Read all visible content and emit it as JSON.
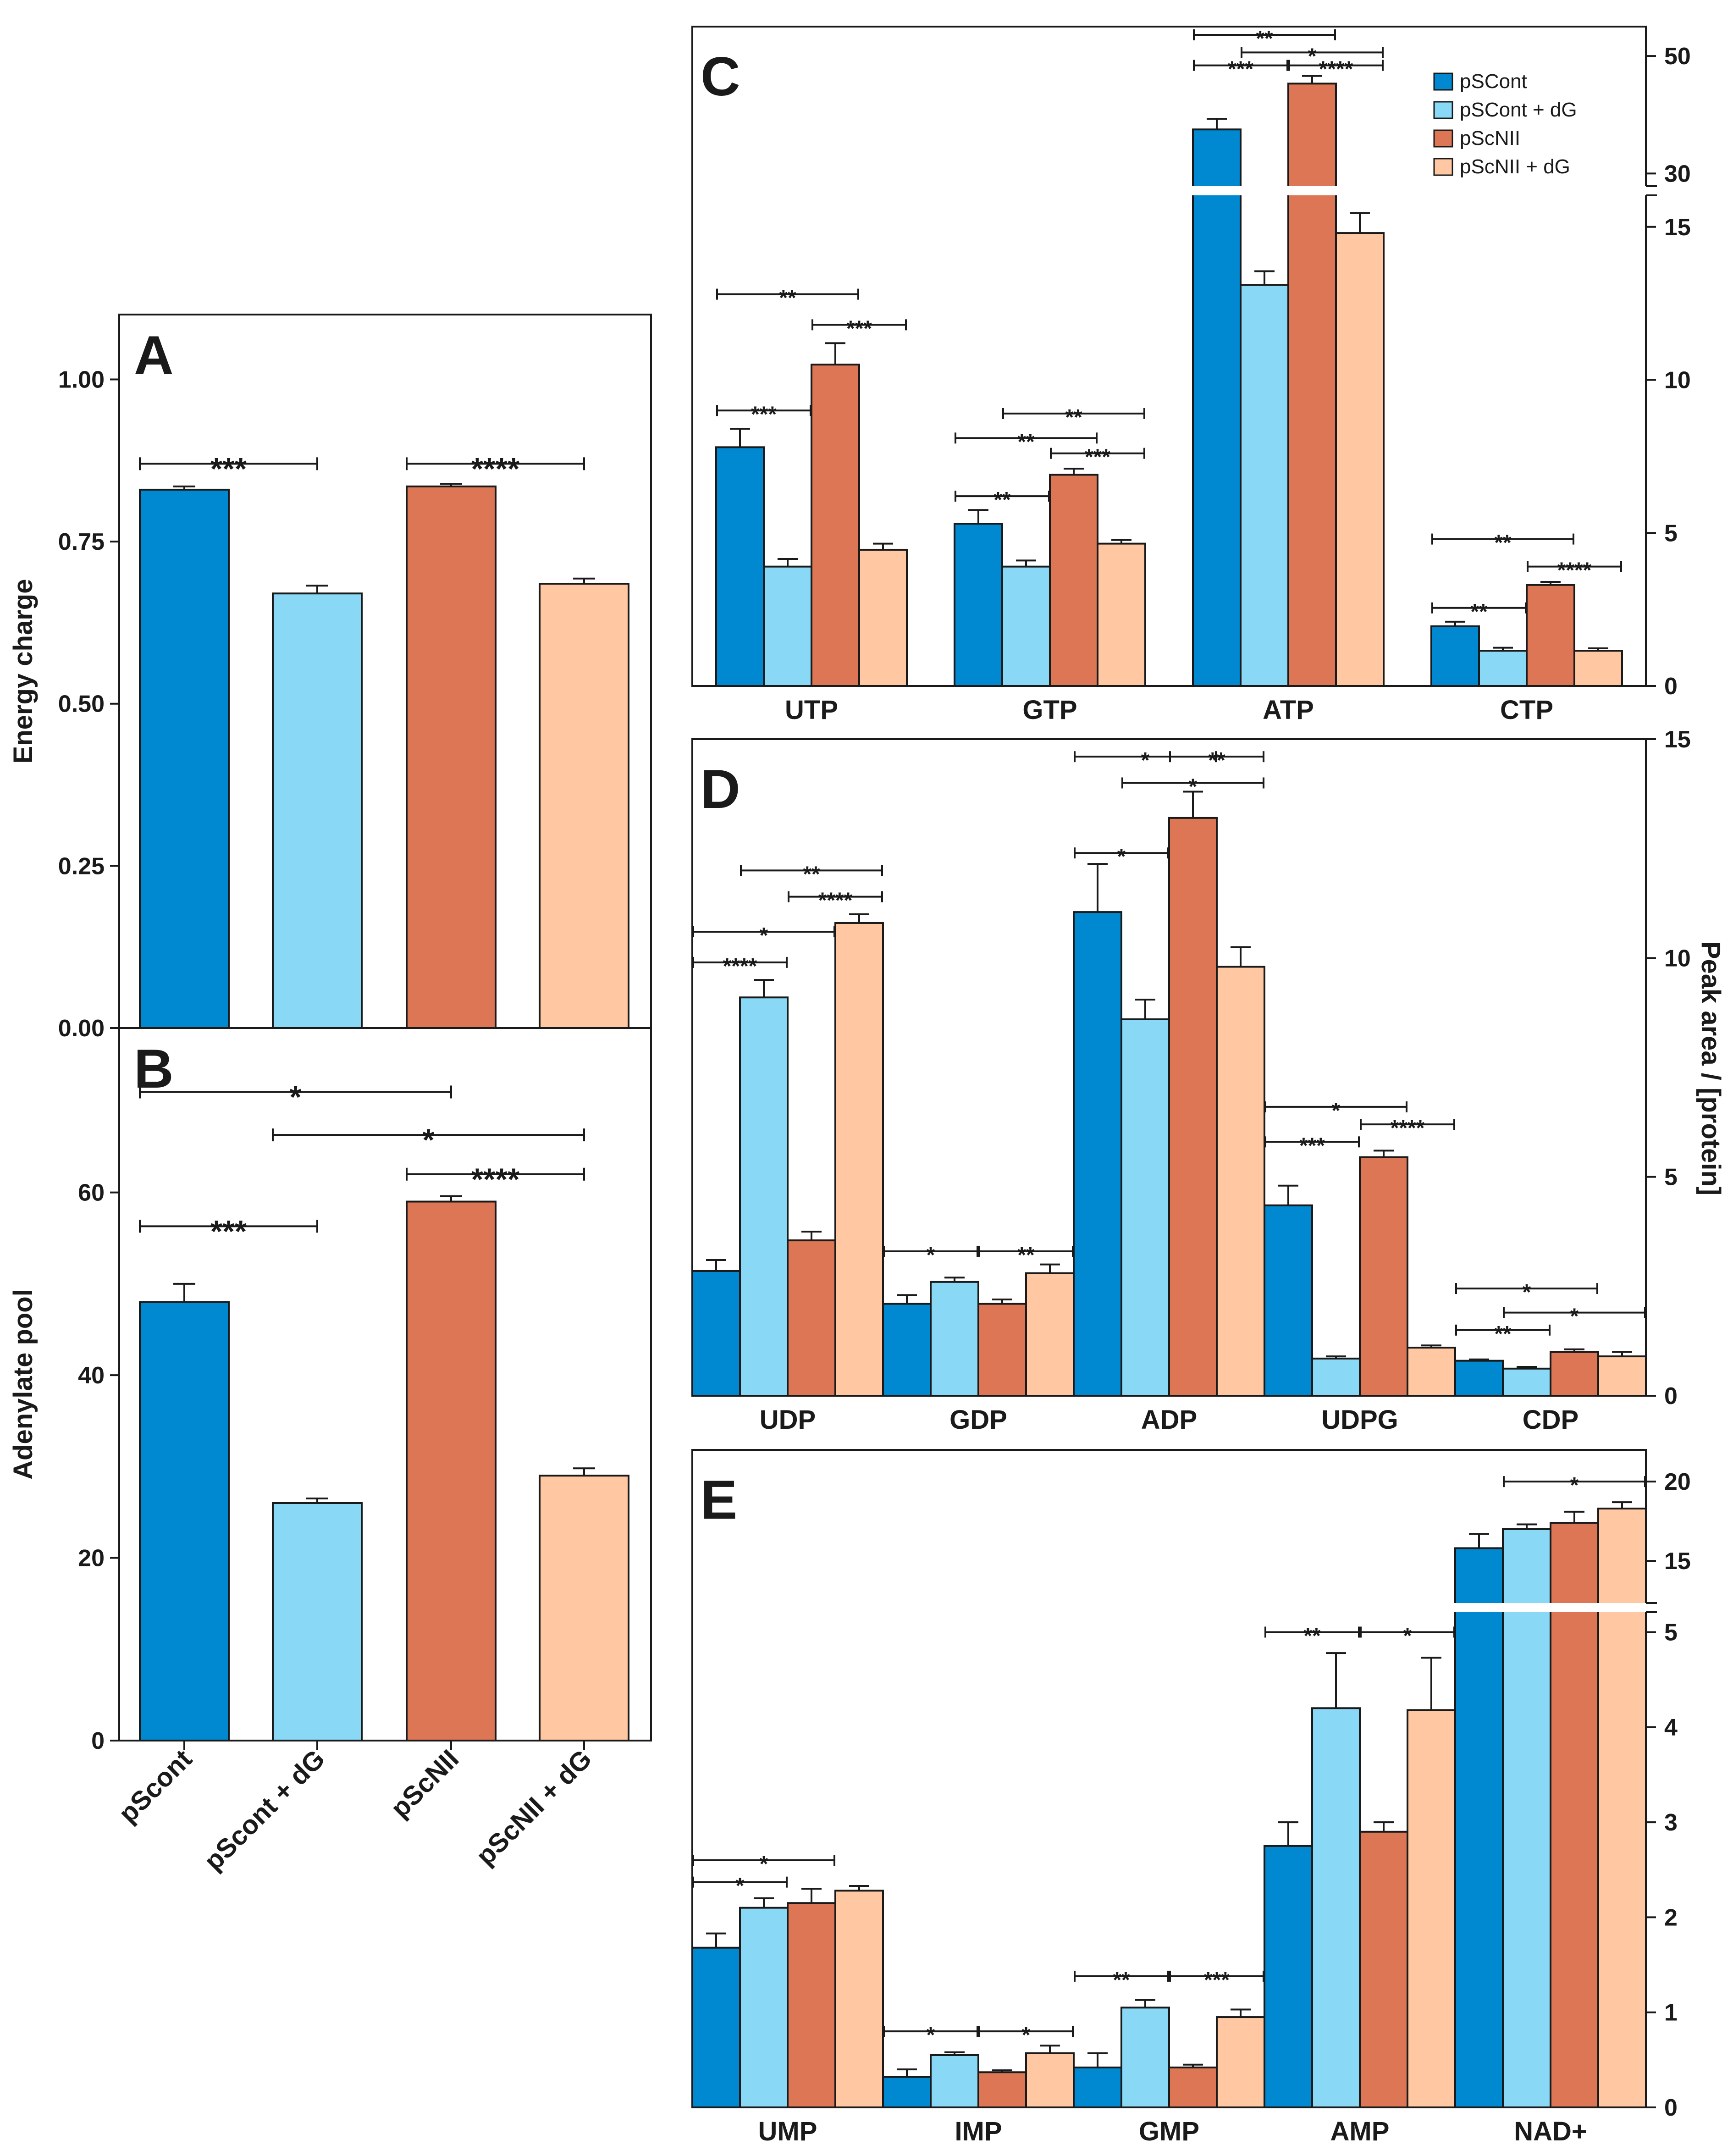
{
  "colors": {
    "pSCont": "#0088d0",
    "pSCont_dG": "#88d8f6",
    "pScNII": "#dd7654",
    "pScNII_dG": "#ffc8a2",
    "axis": "#1a1a1a"
  },
  "chart_data": [
    {
      "panel": "A",
      "type": "bar",
      "title": "A",
      "ylabel": "Energy charge",
      "categories": [
        "pScont",
        "pScont + dG",
        "pScNII",
        "pScNII + dG"
      ],
      "values": [
        0.83,
        0.67,
        0.835,
        0.685
      ],
      "errors": [
        0.005,
        0.012,
        0.004,
        0.008
      ],
      "ylim": [
        0,
        1.1
      ],
      "yticks": [
        0,
        0.25,
        0.5,
        0.75,
        1.0
      ],
      "ytick_labels": [
        "0.00",
        "0.25",
        "0.50",
        "0.75",
        "1.00"
      ],
      "annotations": [
        {
          "from": 0,
          "to": 1,
          "y": 0.87,
          "label": "***"
        },
        {
          "from": 2,
          "to": 3,
          "y": 0.87,
          "label": "****"
        }
      ]
    },
    {
      "panel": "B",
      "type": "bar",
      "title": "B",
      "ylabel": "Adenylate pool",
      "categories": [
        "pScont",
        "pScont + dG",
        "pScNII",
        "pScNII + dG"
      ],
      "values": [
        48,
        26,
        59,
        29
      ],
      "errors": [
        2,
        0.5,
        0.6,
        0.8
      ],
      "ylim": [
        0,
        78
      ],
      "yticks": [
        0,
        20,
        40,
        60
      ],
      "ytick_labels": [
        "0",
        "20",
        "40",
        "60"
      ],
      "annotations": [
        {
          "from": 0,
          "to": 2,
          "y": 71,
          "label": "*"
        },
        {
          "from": 1,
          "to": 3,
          "y": 66.3,
          "label": "*"
        },
        {
          "from": 2,
          "to": 3,
          "y": 62,
          "label": "****"
        },
        {
          "from": 0,
          "to": 1,
          "y": 56.3,
          "label": "***"
        }
      ]
    },
    {
      "panel": "C",
      "type": "bar",
      "title": "C",
      "categories": [
        "UTP",
        "GTP",
        "ATP",
        "CTP"
      ],
      "series": [
        {
          "name": "pSCont",
          "values": [
            7.8,
            5.3,
            37.5,
            1.95
          ],
          "errors": [
            0.6,
            0.45,
            1.8,
            0.15
          ]
        },
        {
          "name": "pSCont + dG",
          "values": [
            3.9,
            3.9,
            13.1,
            1.15
          ],
          "errors": [
            0.25,
            0.2,
            0.45,
            0.1
          ]
        },
        {
          "name": "pScNII",
          "values": [
            10.5,
            6.9,
            45.3,
            3.3
          ],
          "errors": [
            0.7,
            0.2,
            1.3,
            0.1
          ]
        },
        {
          "name": "pScNII + dG",
          "values": [
            4.45,
            4.65,
            14.8,
            1.15
          ],
          "errors": [
            0.2,
            0.12,
            0.65,
            0.08
          ]
        }
      ],
      "yaxis_break": {
        "lower_max": 16,
        "upper_range": [
          28,
          55
        ]
      },
      "ylim": [
        0,
        55
      ],
      "yticks_lower": [
        0,
        5,
        10,
        15
      ],
      "yticks_upper": [
        30,
        50
      ],
      "legend_position": "top-right",
      "annotations": [
        {
          "cat": 0,
          "from": 0,
          "to": 1,
          "y": 9.0,
          "label": "***"
        },
        {
          "cat": 0,
          "from": 0,
          "to": 2,
          "y": 12.8,
          "label": "**"
        },
        {
          "cat": 0,
          "from": 2,
          "to": 3,
          "y": 11.8,
          "label": "***"
        },
        {
          "cat": 1,
          "from": 0,
          "to": 1,
          "y": 6.2,
          "label": "**"
        },
        {
          "cat": 1,
          "from": 0,
          "to": 2,
          "y": 8.1,
          "label": "**"
        },
        {
          "cat": 1,
          "from": 1,
          "to": 3,
          "y": 8.9,
          "label": "**"
        },
        {
          "cat": 1,
          "from": 2,
          "to": 3,
          "y": 7.6,
          "label": "***"
        },
        {
          "cat": 2,
          "from": 0,
          "to": 2,
          "y": 53.6,
          "label": "**"
        },
        {
          "cat": 2,
          "from": 1,
          "to": 3,
          "y": 50.6,
          "label": "*"
        },
        {
          "cat": 2,
          "from": 0,
          "to": 1,
          "y": 48.4,
          "label": "***"
        },
        {
          "cat": 2,
          "from": 2,
          "to": 3,
          "y": 48.4,
          "label": "****"
        },
        {
          "cat": 3,
          "from": 0,
          "to": 2,
          "y": 4.8,
          "label": "**"
        },
        {
          "cat": 3,
          "from": 0,
          "to": 1,
          "y": 2.55,
          "label": "**"
        },
        {
          "cat": 3,
          "from": 2,
          "to": 3,
          "y": 3.9,
          "label": "****"
        }
      ]
    },
    {
      "panel": "D",
      "type": "bar",
      "title": "D",
      "ylabel": "Peak area / [protein]",
      "categories": [
        "UDP",
        "GDP",
        "ADP",
        "UDPG",
        "CDP"
      ],
      "series": [
        {
          "name": "pSCont",
          "values": [
            2.85,
            2.1,
            11.05,
            4.35,
            0.8
          ],
          "errors": [
            0.25,
            0.2,
            1.1,
            0.45,
            0.03
          ]
        },
        {
          "name": "pSCont + dG",
          "values": [
            9.1,
            2.6,
            8.6,
            0.85,
            0.62
          ],
          "errors": [
            0.4,
            0.1,
            0.45,
            0.05,
            0.04
          ]
        },
        {
          "name": "pScNII",
          "values": [
            3.55,
            2.1,
            13.2,
            5.45,
            1.0
          ],
          "errors": [
            0.2,
            0.1,
            0.6,
            0.15,
            0.06
          ]
        },
        {
          "name": "pScNII + dG",
          "values": [
            10.8,
            2.8,
            9.8,
            1.1,
            0.9
          ],
          "errors": [
            0.2,
            0.2,
            0.45,
            0.05,
            0.1
          ]
        }
      ],
      "ylim": [
        0,
        15
      ],
      "yticks": [
        0,
        5,
        10,
        15
      ],
      "annotations": [
        {
          "cat": 0,
          "from": 0,
          "to": 2,
          "y": 10.6,
          "label": "*"
        },
        {
          "cat": 0,
          "from": 0,
          "to": 1,
          "y": 9.9,
          "label": "****"
        },
        {
          "cat": 0,
          "from": 1,
          "to": 3,
          "y": 12.0,
          "label": "**"
        },
        {
          "cat": 0,
          "from": 2,
          "to": 3,
          "y": 11.4,
          "label": "****"
        },
        {
          "cat": 1,
          "from": 0,
          "to": 1,
          "y": 3.3,
          "label": "*"
        },
        {
          "cat": 1,
          "from": 2,
          "to": 3,
          "y": 3.3,
          "label": "**"
        },
        {
          "cat": 2,
          "from": 0,
          "to": 2,
          "y": 14.6,
          "label": "*"
        },
        {
          "cat": 2,
          "from": 2,
          "to": 3,
          "y": 14.6,
          "label": "**"
        },
        {
          "cat": 2,
          "from": 1,
          "to": 3,
          "y": 14.0,
          "label": "*"
        },
        {
          "cat": 2,
          "from": 0,
          "to": 1,
          "y": 12.4,
          "label": "*"
        },
        {
          "cat": 3,
          "from": 0,
          "to": 2,
          "y": 6.6,
          "label": "*"
        },
        {
          "cat": 3,
          "from": 0,
          "to": 1,
          "y": 5.8,
          "label": "***"
        },
        {
          "cat": 3,
          "from": 2,
          "to": 3,
          "y": 6.2,
          "label": "****"
        },
        {
          "cat": 4,
          "from": 0,
          "to": 2,
          "y": 2.45,
          "label": "*"
        },
        {
          "cat": 4,
          "from": 1,
          "to": 3,
          "y": 1.9,
          "label": "*"
        },
        {
          "cat": 4,
          "from": 0,
          "to": 1,
          "y": 1.5,
          "label": "**"
        }
      ]
    },
    {
      "panel": "E",
      "type": "bar",
      "title": "E",
      "categories": [
        "UMP",
        "IMP",
        "GMP",
        "AMP",
        "NAD+"
      ],
      "series": [
        {
          "name": "pSCont",
          "values": [
            1.68,
            0.32,
            0.42,
            2.75,
            15.8
          ],
          "errors": [
            0.15,
            0.08,
            0.15,
            0.25,
            0.9
          ]
        },
        {
          "name": "pSCont + dG",
          "values": [
            2.1,
            0.55,
            1.05,
            4.2,
            17.0
          ],
          "errors": [
            0.1,
            0.03,
            0.08,
            0.58,
            0.3
          ]
        },
        {
          "name": "pScNII",
          "values": [
            2.15,
            0.37,
            0.42,
            2.9,
            17.4
          ],
          "errors": [
            0.15,
            0.02,
            0.03,
            0.1,
            0.7
          ]
        },
        {
          "name": "pScNII + dG",
          "values": [
            2.28,
            0.57,
            0.95,
            4.18,
            18.3
          ],
          "errors": [
            0.05,
            0.08,
            0.08,
            0.55,
            0.4
          ]
        }
      ],
      "yaxis_break": {
        "lower_max": 5.2,
        "upper_range": [
          12.4,
          22
        ]
      },
      "ylim": [
        0,
        22
      ],
      "yticks_lower": [
        0,
        1,
        2,
        3,
        4,
        5
      ],
      "yticks_upper": [
        15,
        20
      ],
      "annotations": [
        {
          "cat": 0,
          "from": 0,
          "to": 2,
          "y": 2.6,
          "label": "*"
        },
        {
          "cat": 0,
          "from": 0,
          "to": 1,
          "y": 2.37,
          "label": "*"
        },
        {
          "cat": 1,
          "from": 0,
          "to": 1,
          "y": 0.8,
          "label": "*"
        },
        {
          "cat": 1,
          "from": 2,
          "to": 3,
          "y": 0.8,
          "label": "*"
        },
        {
          "cat": 2,
          "from": 0,
          "to": 1,
          "y": 1.38,
          "label": "**"
        },
        {
          "cat": 2,
          "from": 2,
          "to": 3,
          "y": 1.38,
          "label": "***"
        },
        {
          "cat": 3,
          "from": 0,
          "to": 1,
          "y": 5.0,
          "label": "**"
        },
        {
          "cat": 3,
          "from": 2,
          "to": 3,
          "y": 5.0,
          "label": "*"
        },
        {
          "cat": 4,
          "from": 1,
          "to": 3,
          "y": 20.0,
          "label": "*"
        }
      ]
    }
  ]
}
